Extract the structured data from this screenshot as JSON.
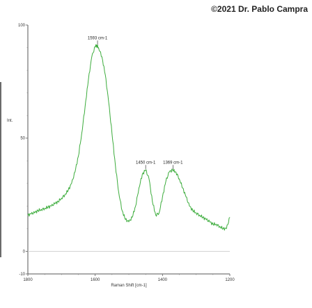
{
  "credit": "©2021 Dr. Pablo Campra",
  "chart_data": {
    "type": "line",
    "title": "",
    "xlabel": "Raman Shift [cm-1]",
    "ylabel": "Int.",
    "xlim": [
      1800,
      1200
    ],
    "ylim": [
      -10,
      100
    ],
    "xticks": [
      1800,
      1600,
      1400,
      1200
    ],
    "yticks": [
      -10,
      0,
      50,
      100
    ],
    "grid": false,
    "colors": {
      "line": "#3cac3c",
      "zero_line": "#cccccc"
    },
    "series": [
      {
        "x": [
          1800,
          1790,
          1780,
          1770,
          1760,
          1750,
          1740,
          1730,
          1720,
          1710,
          1700,
          1690,
          1680,
          1670,
          1660,
          1650,
          1640,
          1630,
          1620,
          1610,
          1600,
          1595,
          1590,
          1580,
          1570,
          1560,
          1550,
          1540,
          1530,
          1520,
          1510,
          1500,
          1490,
          1480,
          1470,
          1460,
          1450,
          1440,
          1430,
          1420,
          1410,
          1400,
          1390,
          1380,
          1370,
          1360,
          1350,
          1340,
          1330,
          1320,
          1310,
          1300,
          1290,
          1280,
          1270,
          1260,
          1250,
          1240,
          1230,
          1220,
          1210,
          1200
        ],
        "y": [
          16,
          16.5,
          17,
          18,
          18.5,
          19,
          19.5,
          20,
          21,
          22,
          23.5,
          25,
          27,
          30,
          35,
          42,
          52,
          64,
          76,
          86,
          90.5,
          91,
          90,
          86,
          78,
          66,
          52,
          38,
          26,
          18,
          14,
          13,
          15,
          20,
          28,
          34,
          36,
          32,
          22,
          16,
          17,
          24,
          31,
          35,
          36,
          35,
          32,
          28,
          24,
          20,
          18,
          17,
          16,
          15,
          14,
          13,
          12,
          12,
          11,
          10,
          10,
          15
        ],
        "annotations": [
          {
            "x": 1593,
            "y": 91,
            "label": "1593 cm-1"
          },
          {
            "x": 1450,
            "y": 36,
            "label": "1450 cm-1"
          },
          {
            "x": 1369,
            "y": 36,
            "label": "1369 cm-1"
          }
        ]
      }
    ]
  }
}
